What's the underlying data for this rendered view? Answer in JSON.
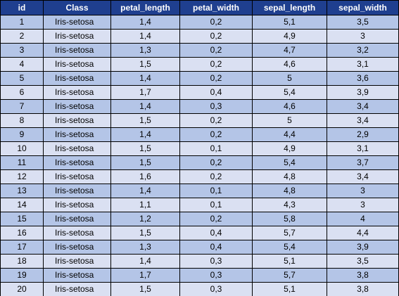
{
  "table": {
    "headers": [
      "id",
      "Class",
      "petal_length",
      "petal_width",
      "sepal_length",
      "sepal_width"
    ],
    "rows": [
      [
        "1",
        "Iris-setosa",
        "1,4",
        "0,2",
        "5,1",
        "3,5"
      ],
      [
        "2",
        "Iris-setosa",
        "1,4",
        "0,2",
        "4,9",
        "3"
      ],
      [
        "3",
        "Iris-setosa",
        "1,3",
        "0,2",
        "4,7",
        "3,2"
      ],
      [
        "4",
        "Iris-setosa",
        "1,5",
        "0,2",
        "4,6",
        "3,1"
      ],
      [
        "5",
        "Iris-setosa",
        "1,4",
        "0,2",
        "5",
        "3,6"
      ],
      [
        "6",
        "Iris-setosa",
        "1,7",
        "0,4",
        "5,4",
        "3,9"
      ],
      [
        "7",
        "Iris-setosa",
        "1,4",
        "0,3",
        "4,6",
        "3,4"
      ],
      [
        "8",
        "Iris-setosa",
        "1,5",
        "0,2",
        "5",
        "3,4"
      ],
      [
        "9",
        "Iris-setosa",
        "1,4",
        "0,2",
        "4,4",
        "2,9"
      ],
      [
        "10",
        "Iris-setosa",
        "1,5",
        "0,1",
        "4,9",
        "3,1"
      ],
      [
        "11",
        "Iris-setosa",
        "1,5",
        "0,2",
        "5,4",
        "3,7"
      ],
      [
        "12",
        "Iris-setosa",
        "1,6",
        "0,2",
        "4,8",
        "3,4"
      ],
      [
        "13",
        "Iris-setosa",
        "1,4",
        "0,1",
        "4,8",
        "3"
      ],
      [
        "14",
        "Iris-setosa",
        "1,1",
        "0,1",
        "4,3",
        "3"
      ],
      [
        "15",
        "Iris-setosa",
        "1,2",
        "0,2",
        "5,8",
        "4"
      ],
      [
        "16",
        "Iris-setosa",
        "1,5",
        "0,4",
        "5,7",
        "4,4"
      ],
      [
        "17",
        "Iris-setosa",
        "1,3",
        "0,4",
        "5,4",
        "3,9"
      ],
      [
        "18",
        "Iris-setosa",
        "1,4",
        "0,3",
        "5,1",
        "3,5"
      ],
      [
        "19",
        "Iris-setosa",
        "1,7",
        "0,3",
        "5,7",
        "3,8"
      ],
      [
        "20",
        "Iris-setosa",
        "1,5",
        "0,3",
        "5,1",
        "3,8"
      ]
    ]
  },
  "colors": {
    "header_bg": "#1f3f8f",
    "header_text": "#ffffff",
    "row_odd": "#b4c5e7",
    "row_even": "#dae0f2",
    "border": "#000000"
  }
}
